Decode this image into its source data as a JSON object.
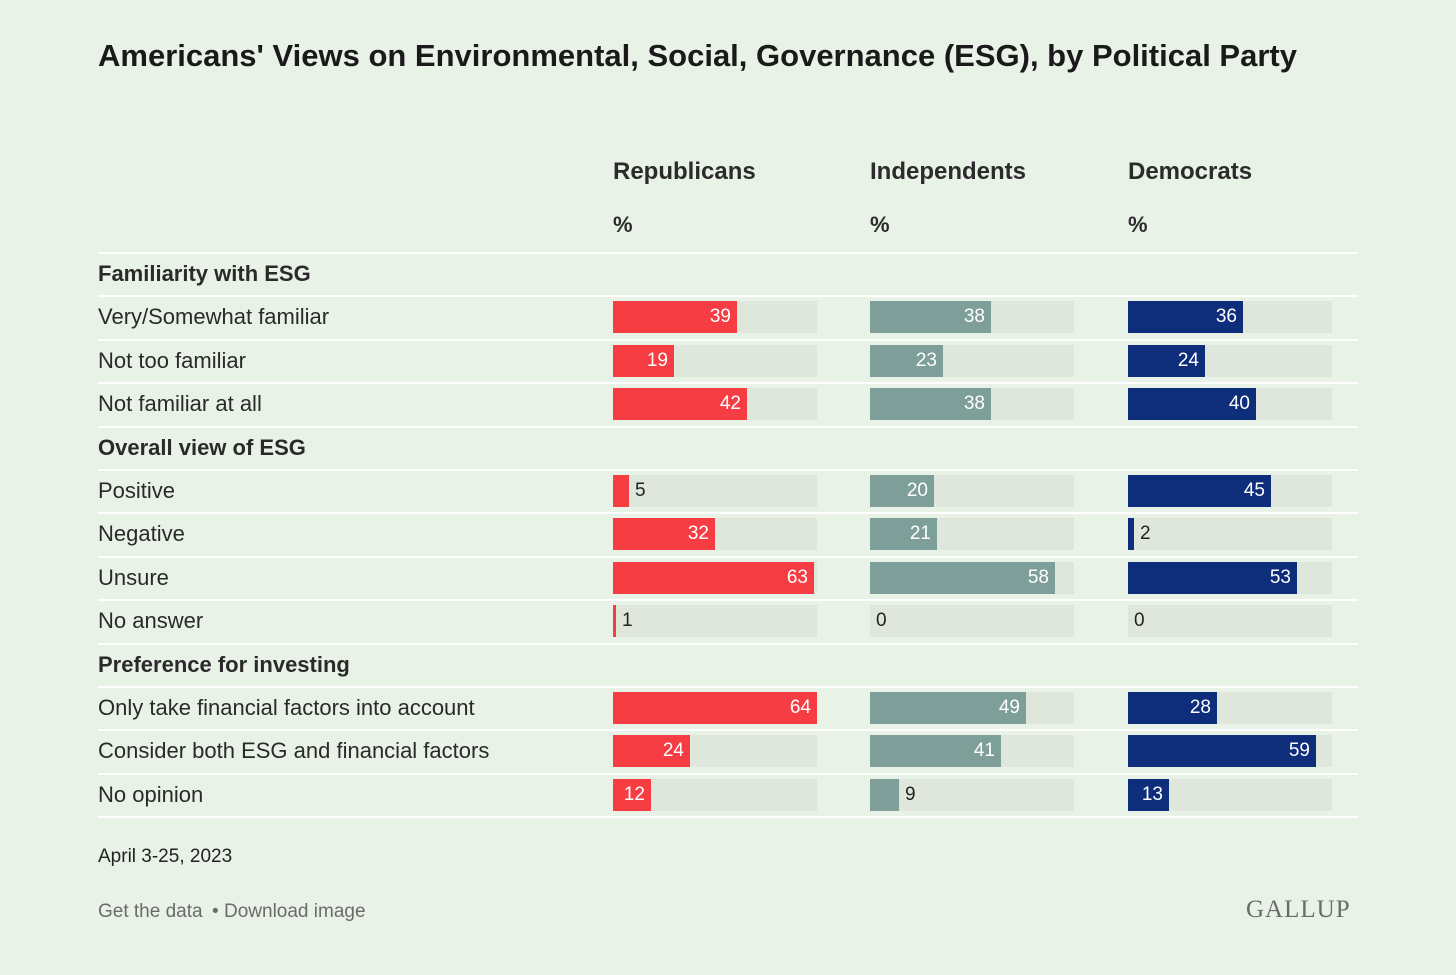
{
  "chart_data": {
    "type": "bar",
    "title": "Americans' Views on Environmental, Social, Governance (ESG), by Political Party",
    "unit_label": "%",
    "series": [
      {
        "name": "Republicans",
        "color": "#f53d43"
      },
      {
        "name": "Independents",
        "color": "#7d9e99"
      },
      {
        "name": "Democrats",
        "color": "#0e2d7a"
      }
    ],
    "groups": [
      {
        "label": "Familiarity with ESG",
        "rows": [
          {
            "label": "Very/Somewhat familiar",
            "values": [
              39,
              38,
              36
            ]
          },
          {
            "label": "Not too familiar",
            "values": [
              19,
              23,
              24
            ]
          },
          {
            "label": "Not familiar at all",
            "values": [
              42,
              38,
              40
            ]
          }
        ]
      },
      {
        "label": "Overall view of ESG",
        "rows": [
          {
            "label": "Positive",
            "values": [
              5,
              20,
              45
            ]
          },
          {
            "label": "Negative",
            "values": [
              32,
              21,
              2
            ]
          },
          {
            "label": "Unsure",
            "values": [
              63,
              58,
              53
            ]
          },
          {
            "label": "No answer",
            "values": [
              1,
              0,
              0
            ]
          }
        ]
      },
      {
        "label": "Preference for investing",
        "rows": [
          {
            "label": "Only take financial factors into account",
            "values": [
              64,
              49,
              28
            ]
          },
          {
            "label": "Consider both ESG and financial factors",
            "values": [
              24,
              41,
              59
            ]
          },
          {
            "label": "No opinion",
            "values": [
              12,
              9,
              13
            ]
          }
        ]
      }
    ],
    "xlim": [
      0,
      64
    ],
    "track_color": "#dfe6dc",
    "background": "#e9f2e7"
  },
  "footer": {
    "date": "April 3-25, 2023",
    "get_data_label": "Get the data",
    "separator": "•",
    "download_label": "Download image",
    "logo_text": "GALLUP"
  }
}
